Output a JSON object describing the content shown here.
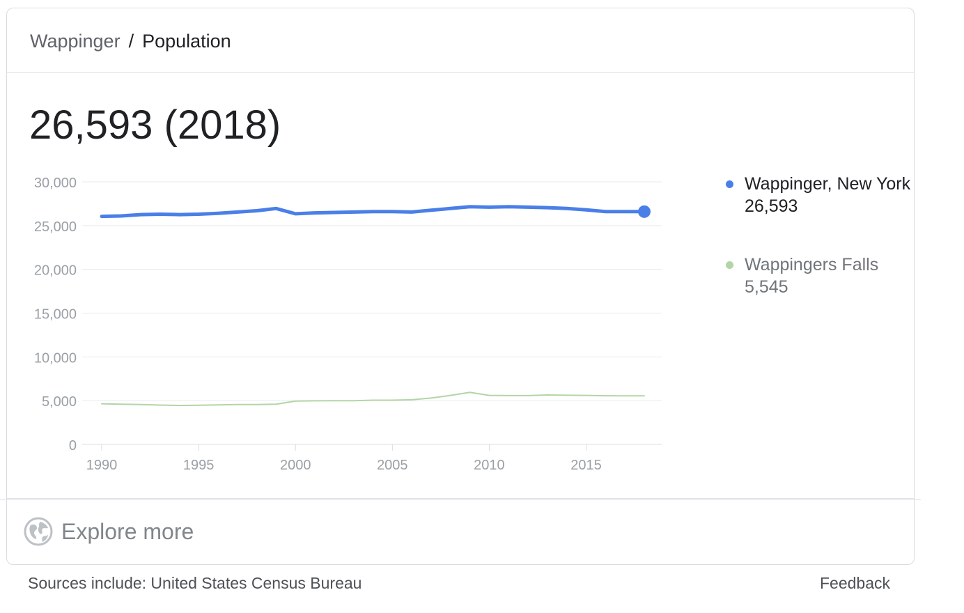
{
  "breadcrumb": {
    "parent": "Wappinger",
    "separator": "/",
    "current": "Population"
  },
  "headline": "26,593 (2018)",
  "colors": {
    "primary_series": "#4a7fe8",
    "secondary_series": "#b2d5a6",
    "grid": "#e8eaed",
    "tick_label": "#9aa0a6"
  },
  "chart_data": {
    "type": "line",
    "title": "",
    "xlabel": "",
    "ylabel": "",
    "xlim": [
      1990,
      2018
    ],
    "ylim": [
      0,
      30000
    ],
    "y_ticks": [
      0,
      5000,
      10000,
      15000,
      20000,
      25000,
      30000
    ],
    "y_tick_labels": [
      "0",
      "5,000",
      "10,000",
      "15,000",
      "20,000",
      "25,000",
      "30,000"
    ],
    "x_ticks": [
      1990,
      1995,
      2000,
      2005,
      2010,
      2015
    ],
    "x_tick_labels": [
      "1990",
      "1995",
      "2000",
      "2005",
      "2010",
      "2015"
    ],
    "grid": true,
    "legend": "right",
    "x": [
      1990,
      1991,
      1992,
      1993,
      1994,
      1995,
      1996,
      1997,
      1998,
      1999,
      2000,
      2001,
      2002,
      2003,
      2004,
      2005,
      2006,
      2007,
      2008,
      2009,
      2010,
      2011,
      2012,
      2013,
      2014,
      2015,
      2016,
      2017,
      2018
    ],
    "series": [
      {
        "name": "Wappinger, New York",
        "value_label": "26,593",
        "values": [
          26050,
          26100,
          26250,
          26300,
          26250,
          26300,
          26400,
          26550,
          26700,
          26950,
          26350,
          26450,
          26500,
          26550,
          26600,
          26600,
          26550,
          26750,
          26950,
          27150,
          27100,
          27150,
          27100,
          27050,
          26950,
          26800,
          26600,
          26600,
          26593
        ]
      },
      {
        "name": "Wappingers Falls",
        "value_label": "5,545",
        "values": [
          4650,
          4600,
          4550,
          4500,
          4450,
          4480,
          4520,
          4550,
          4550,
          4600,
          4950,
          4980,
          5000,
          5000,
          5050,
          5050,
          5100,
          5300,
          5600,
          5950,
          5600,
          5580,
          5580,
          5650,
          5620,
          5600,
          5560,
          5550,
          5545
        ]
      }
    ]
  },
  "footer": {
    "explore_label": "Explore more",
    "explore_icon": "globe-icon"
  },
  "sources_text": "Sources include: United States Census Bureau",
  "feedback_label": "Feedback"
}
